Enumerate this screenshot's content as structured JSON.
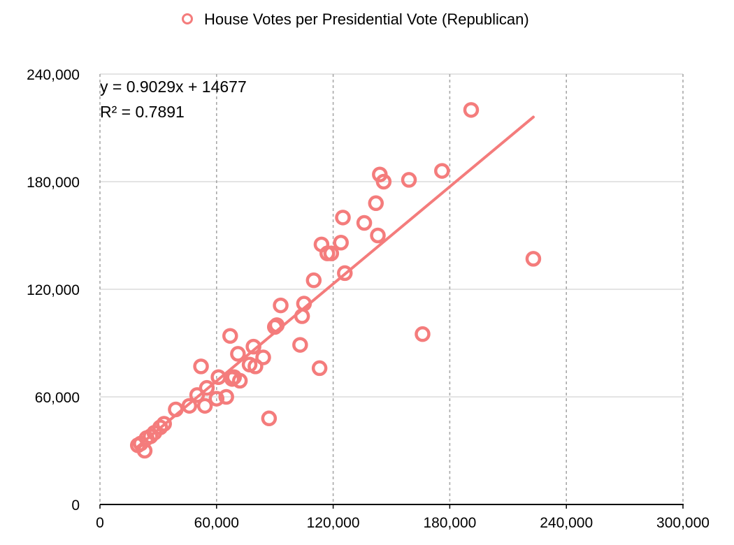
{
  "chart_data": {
    "type": "scatter",
    "title": "",
    "xlabel": "",
    "ylabel": "",
    "xlim": [
      0,
      300000
    ],
    "ylim": [
      0,
      240000
    ],
    "x_ticks": [
      0,
      60000,
      120000,
      180000,
      240000,
      300000
    ],
    "y_ticks": [
      0,
      60000,
      120000,
      180000,
      240000
    ],
    "x_tick_labels": [
      "0",
      "60,000",
      "120,000",
      "180,000",
      "240,000",
      "300,000"
    ],
    "y_tick_labels": [
      "0",
      "60,000",
      "120,000",
      "180,000",
      "240,000"
    ],
    "grid": {
      "vertical": "dashed",
      "horizontal": "solid"
    },
    "legend_position": "top-center",
    "colors": {
      "series": "#f47c7c",
      "grid": "#c8c8c8",
      "axis": "#000000"
    },
    "series": [
      {
        "name": "House Votes per Presidential Vote (Republican)",
        "marker": "open-circle",
        "x": [
          19500,
          21000,
          23000,
          24000,
          26000,
          28000,
          31000,
          33000,
          39000,
          46000,
          50000,
          52000,
          54000,
          55000,
          60000,
          61000,
          65000,
          67000,
          68000,
          69000,
          71000,
          72000,
          77000,
          79000,
          80000,
          84000,
          87000,
          90000,
          91000,
          93000,
          103000,
          104000,
          105000,
          110000,
          113000,
          114000,
          117000,
          119000,
          124000,
          125000,
          126000,
          136000,
          142000,
          143000,
          144000,
          146000,
          159000,
          166000,
          176000,
          191000,
          223000
        ],
        "y": [
          33000,
          34000,
          30000,
          37000,
          38000,
          40000,
          43000,
          45000,
          53000,
          55000,
          61000,
          77000,
          55000,
          65000,
          59000,
          71000,
          60000,
          94000,
          70000,
          71000,
          84000,
          69000,
          78000,
          88000,
          77000,
          82000,
          48000,
          99000,
          100000,
          111000,
          89000,
          105000,
          112000,
          125000,
          76000,
          145000,
          140000,
          140000,
          146000,
          160000,
          129000,
          157000,
          168000,
          150000,
          184000,
          180000,
          181000,
          95000,
          186000,
          220000,
          137000
        ]
      }
    ],
    "trendline": {
      "type": "linear",
      "slope": 0.9029,
      "intercept": 14677,
      "x_range": [
        19500,
        223000
      ],
      "equation_label": "y = 0.9029x + 14677",
      "r2_label": "R² = 0.7891"
    }
  }
}
